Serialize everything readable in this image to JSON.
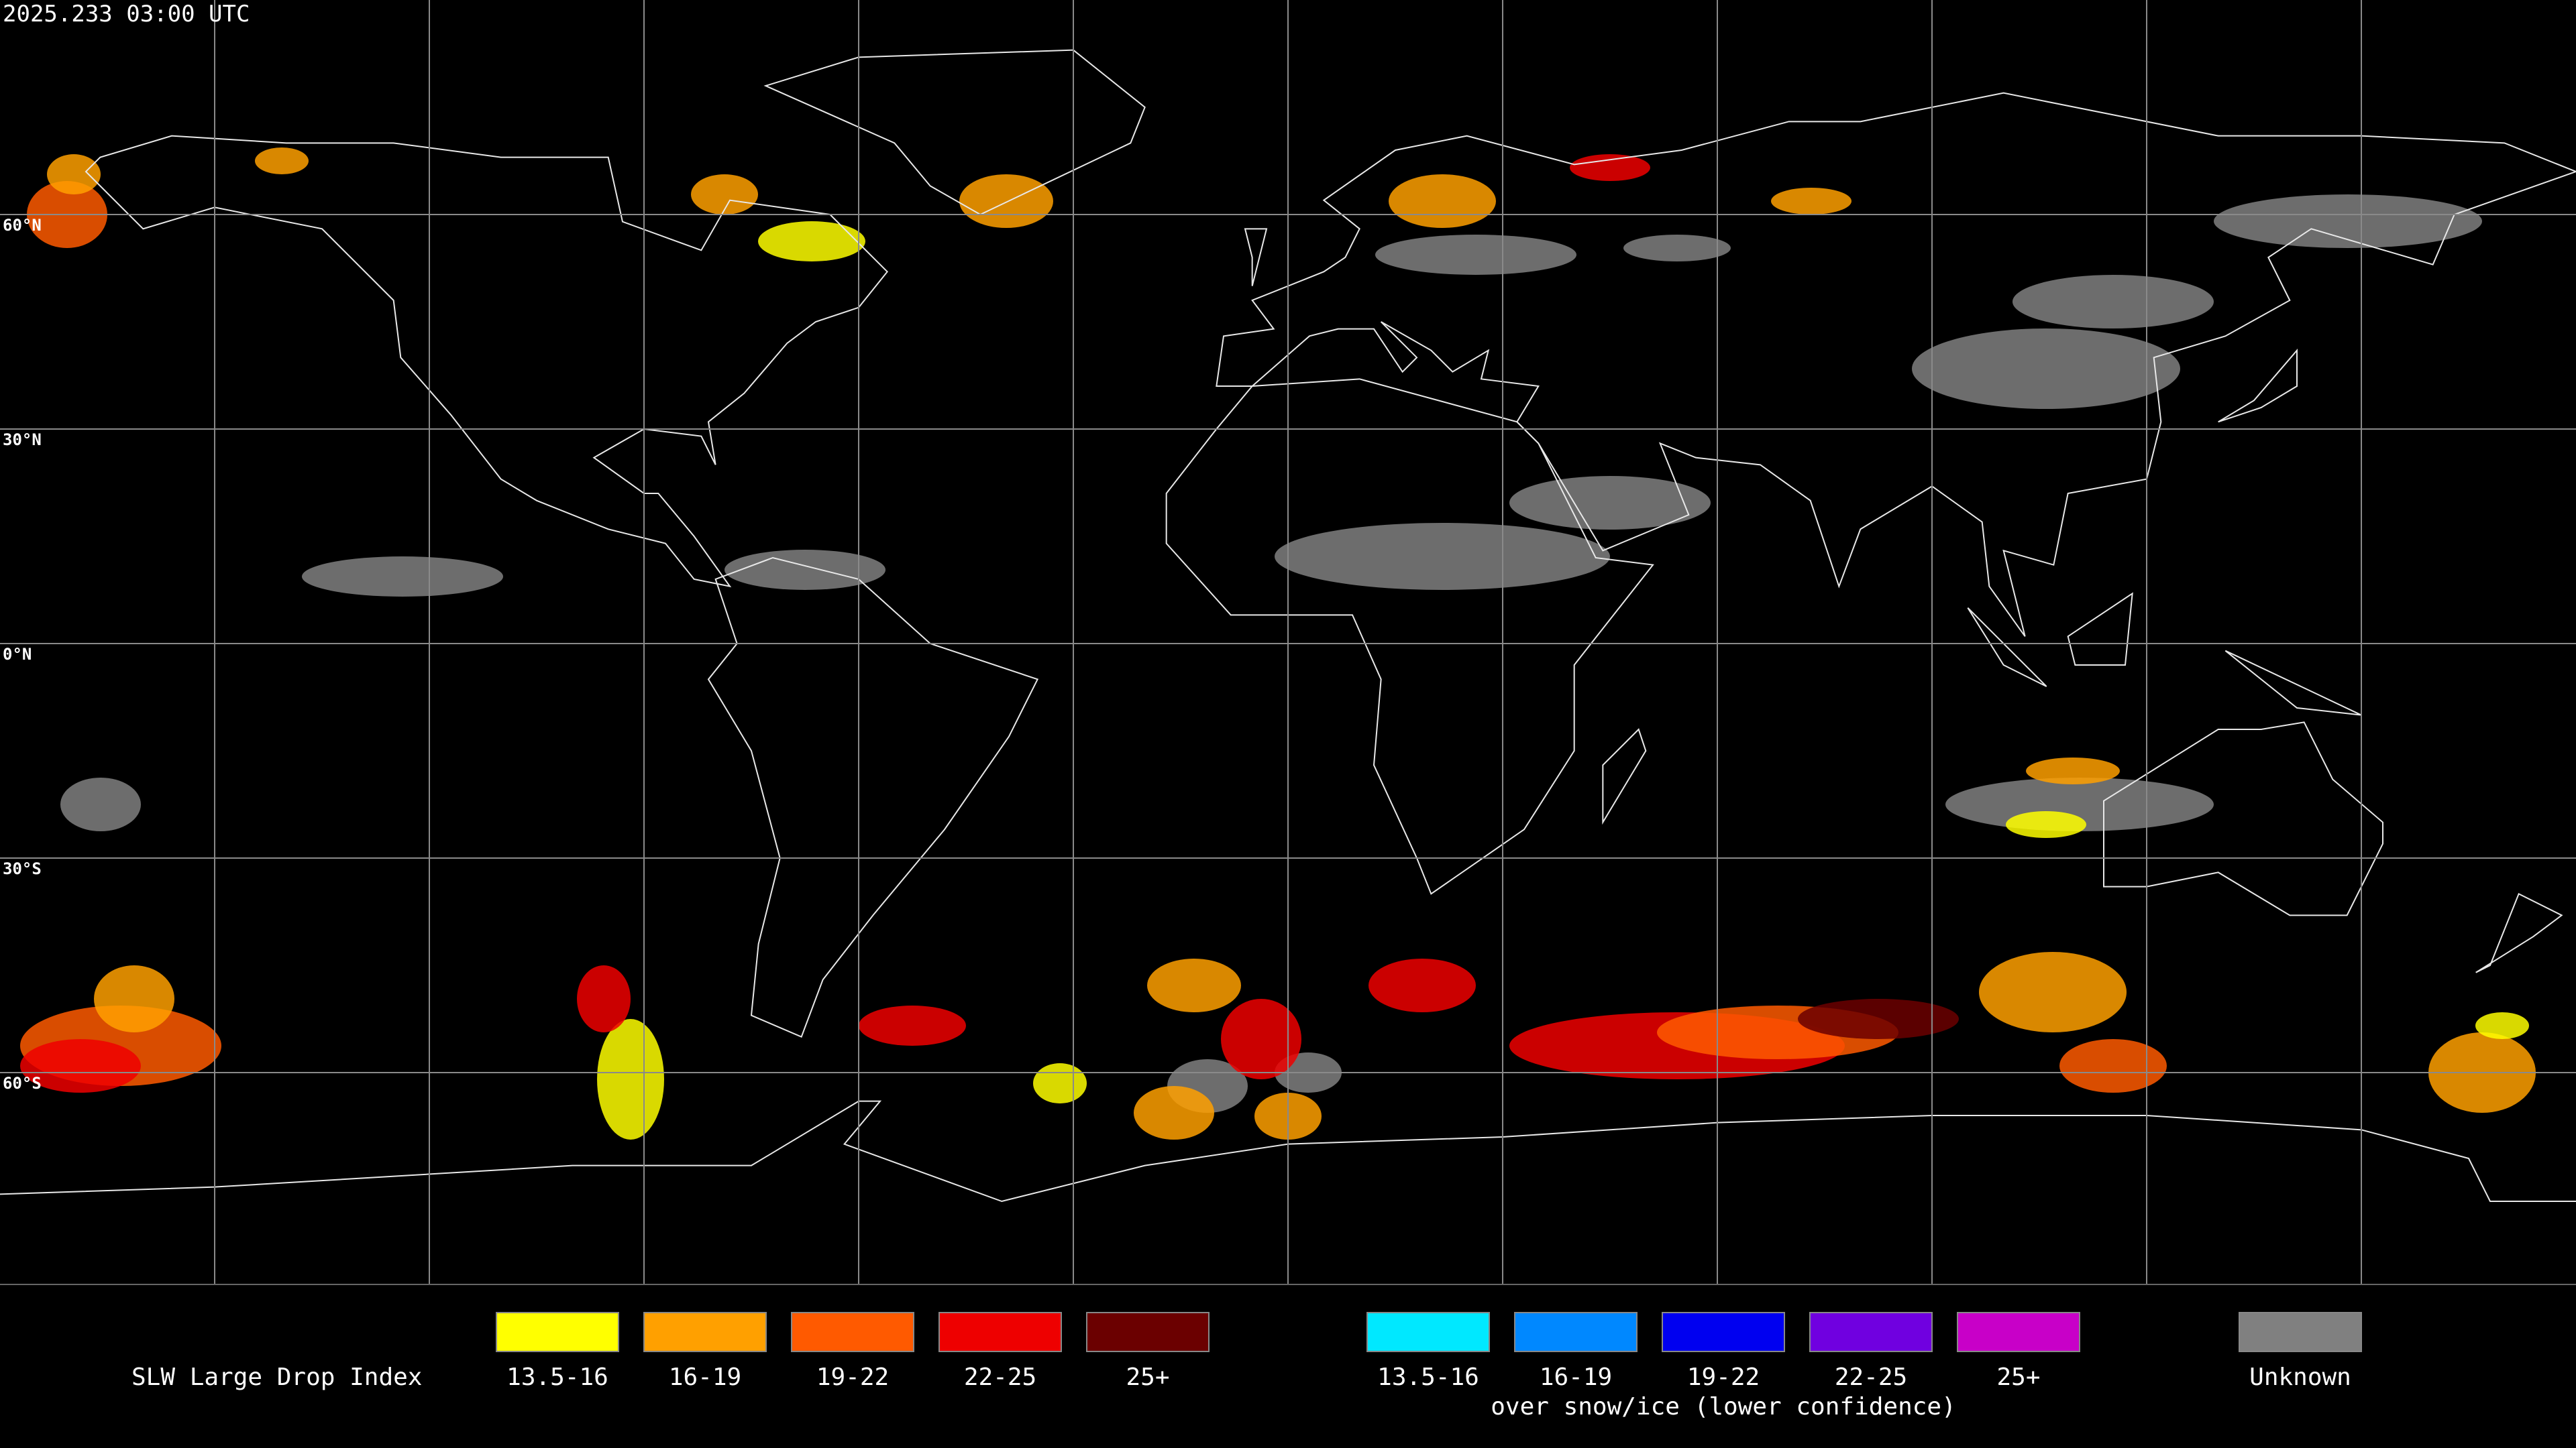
{
  "header": {
    "timestamp": "2025.233 03:00 UTC"
  },
  "map": {
    "latitude_labels": [
      "60°N",
      "30°N",
      "0°N",
      "30°S",
      "60°S"
    ]
  },
  "legend": {
    "title": "SLW Large Drop Index",
    "groups": [
      {
        "items": [
          {
            "label": "13.5-16",
            "color": "#ffff00"
          },
          {
            "label": "16-19",
            "color": "#ffa000"
          },
          {
            "label": "19-22",
            "color": "#ff5a00"
          },
          {
            "label": "22-25",
            "color": "#ee0000"
          },
          {
            "label": "25+",
            "color": "#6b0000"
          }
        ]
      },
      {
        "items": [
          {
            "label": "13.5-16",
            "color": "#00e8ff"
          },
          {
            "label": "16-19",
            "color": "#0088ff"
          },
          {
            "label": "19-22",
            "color": "#0000f0"
          },
          {
            "label": "22-25",
            "color": "#7000e0"
          },
          {
            "label": "25+",
            "color": "#c800c8"
          }
        ],
        "note": "over snow/ice (lower confidence)"
      },
      {
        "items": [
          {
            "label": "Unknown",
            "color": "#808080"
          }
        ]
      }
    ]
  }
}
